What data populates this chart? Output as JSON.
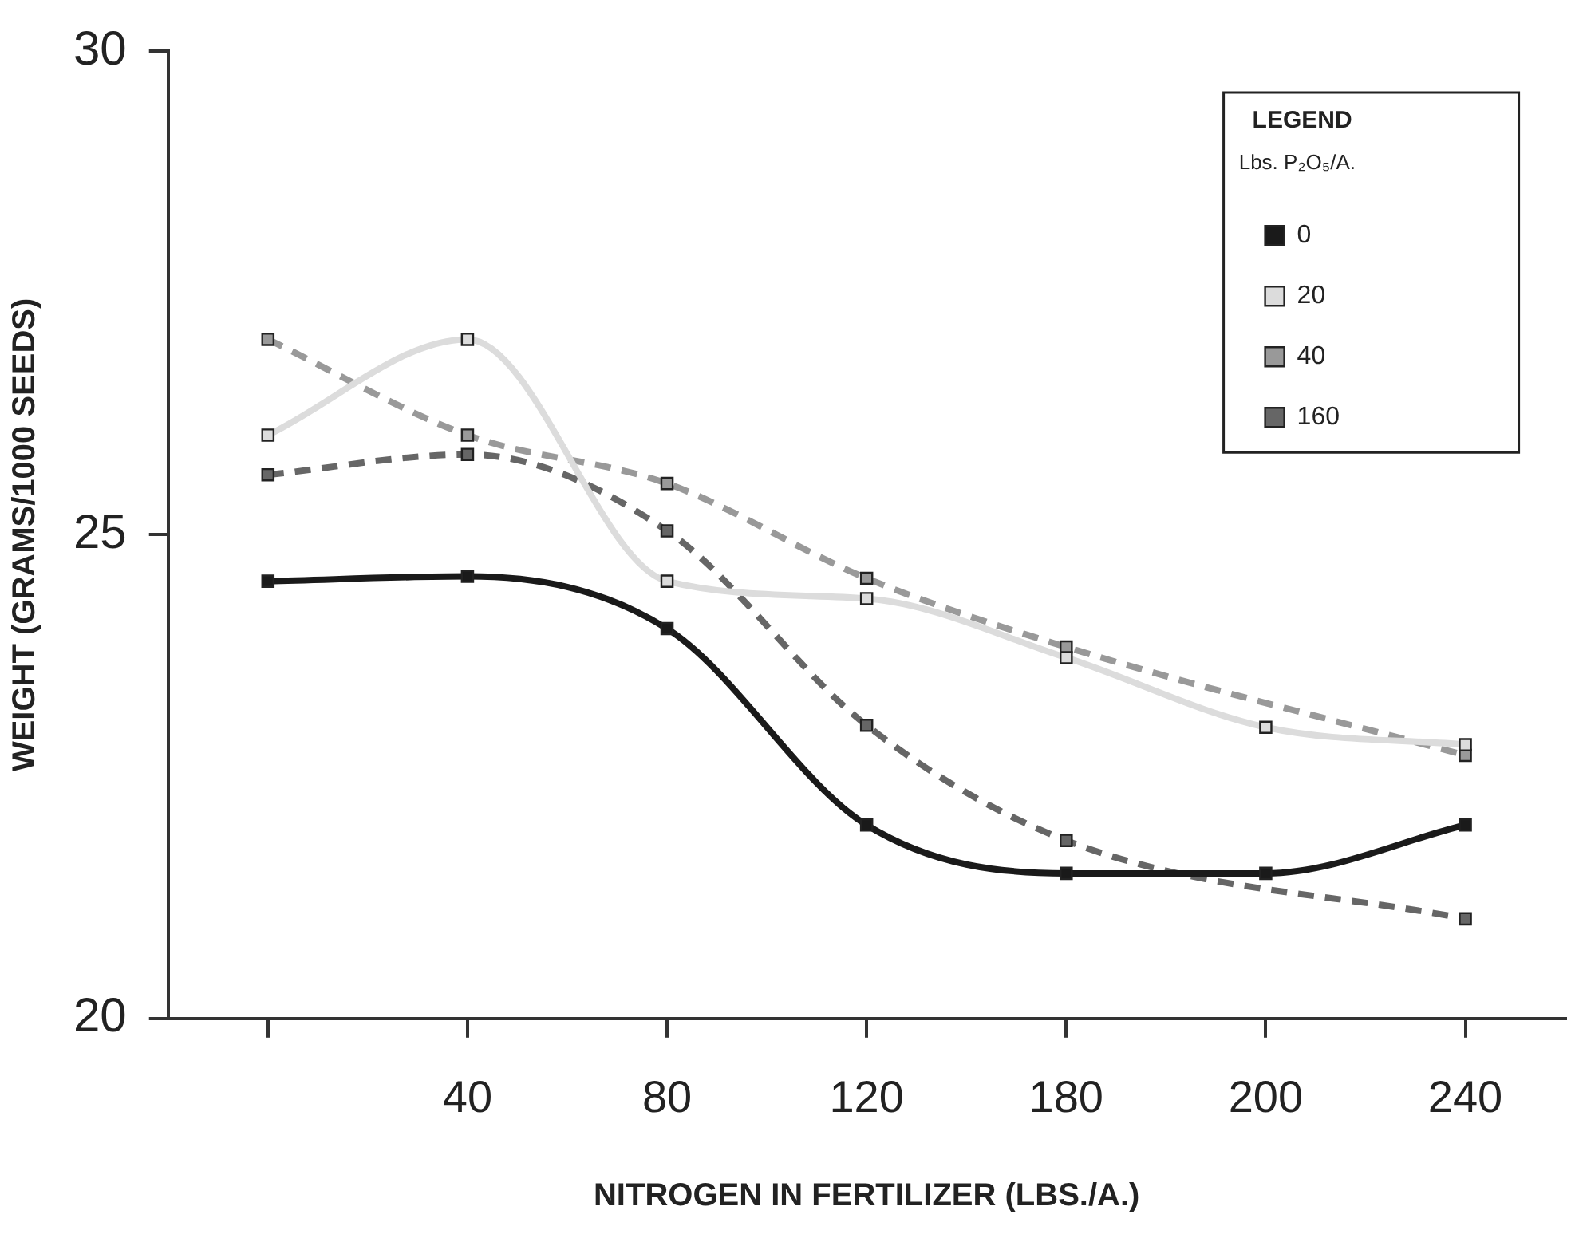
{
  "chart_data": {
    "type": "line",
    "xlabel": "NITROGEN IN FERTILIZER (LBS./A.)",
    "ylabel": "WEIGHT (GRAMS/1000 SEEDS)",
    "legend_title": "Lbs. P₂O₅/A.",
    "annotations": [
      "LEGEND"
    ],
    "categories": [
      null,
      "40",
      "80",
      "120",
      "180",
      "200",
      "240"
    ],
    "ylim": [
      20,
      30
    ],
    "yticks": [
      20,
      25,
      30
    ],
    "grid": false,
    "legend": "top right",
    "marker": "square",
    "series": [
      {
        "name": "0",
        "color": "#1a1a1a",
        "line_style": "solid",
        "values": [
          24.52,
          24.57,
          24.03,
          22.0,
          21.5,
          21.5,
          22.0
        ]
      },
      {
        "name": "20",
        "color": "#dcdcdc",
        "line_style": "solid",
        "values": [
          26.03,
          27.02,
          24.52,
          24.34,
          23.73,
          23.01,
          22.83
        ]
      },
      {
        "name": "40",
        "color": "#999999",
        "line_style": "dashed",
        "values": [
          27.02,
          26.03,
          25.53,
          24.55,
          23.84,
          null,
          22.72
        ]
      },
      {
        "name": "160",
        "color": "#666666",
        "line_style": "dashed",
        "values": [
          25.62,
          25.83,
          25.04,
          23.03,
          21.84,
          null,
          21.03
        ]
      }
    ]
  }
}
